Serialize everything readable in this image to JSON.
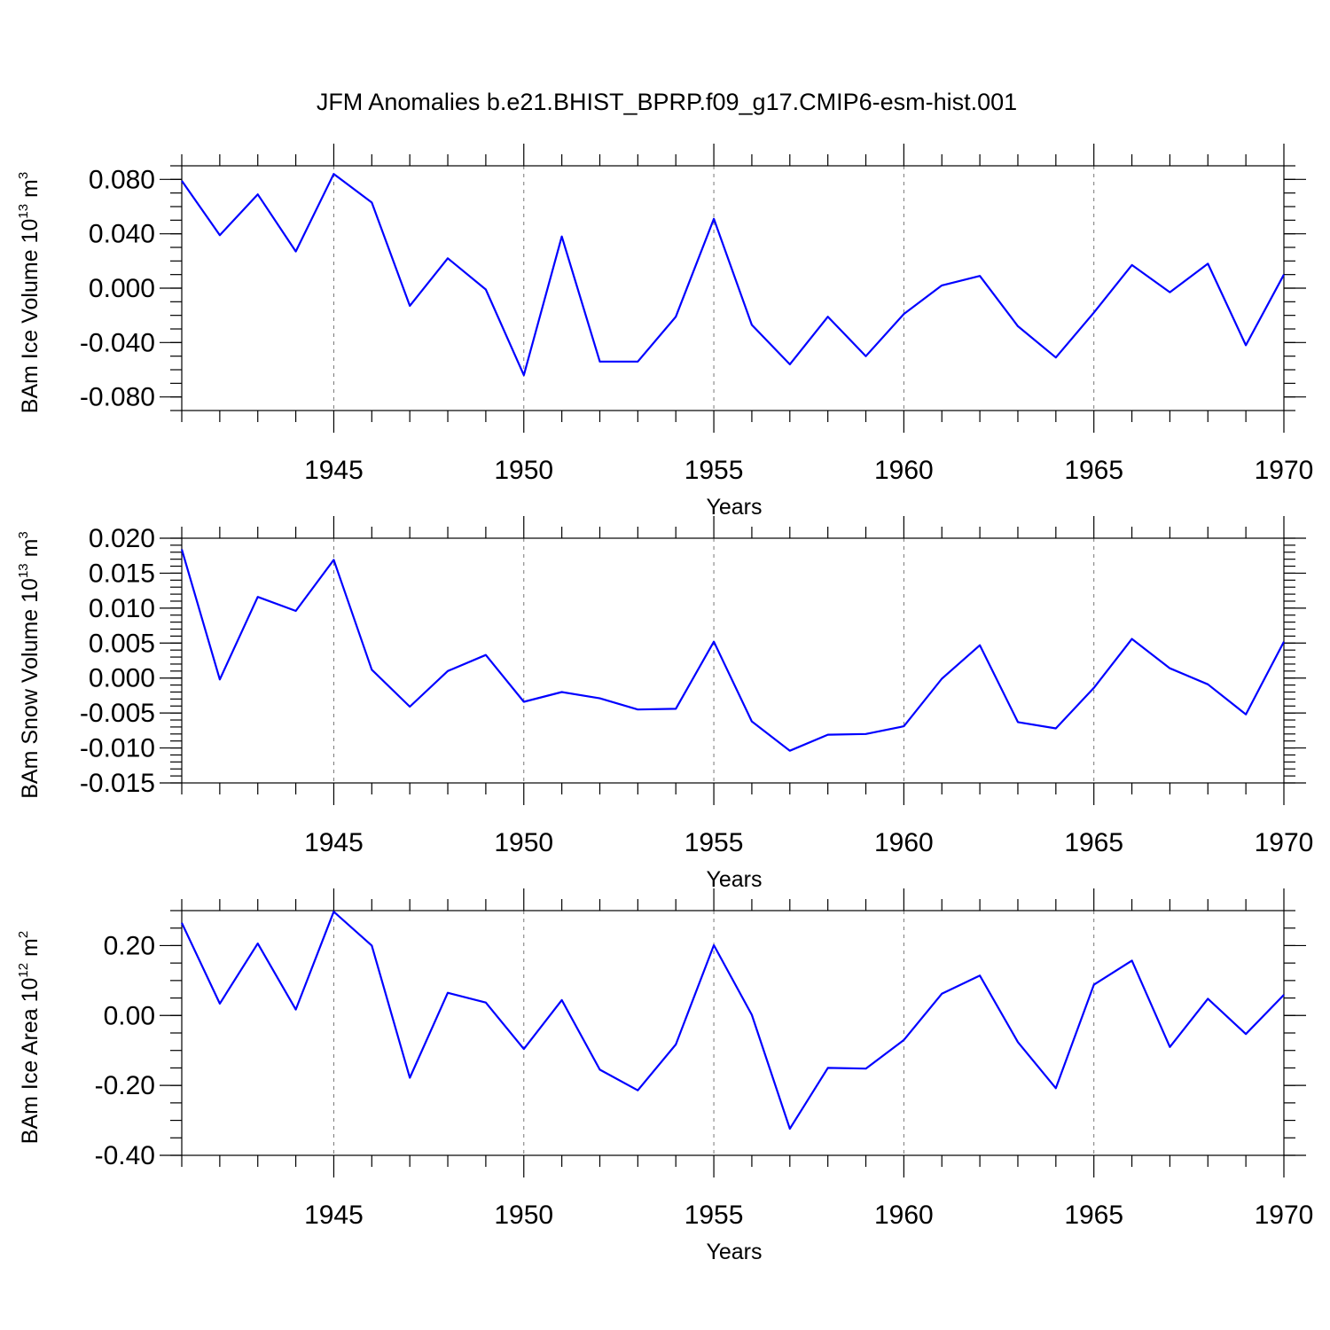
{
  "title": "JFM Anomalies b.e21.BHIST_BPRP.f09_g17.CMIP6-esm-hist.001",
  "colors": {
    "line": "#0000ff",
    "axis": "#000000",
    "grid": "#777777"
  },
  "chart_data": [
    {
      "type": "line",
      "name": "ice-volume",
      "ylabel": {
        "main": "BAm Ice Volume 10",
        "exp": "13",
        "unit": " m",
        "unit_exp": "3"
      },
      "xlabel": "Years",
      "xlim": [
        1941,
        1970
      ],
      "ylim": [
        -0.09,
        0.09
      ],
      "major_yticks": [
        -0.08,
        -0.04,
        0.0,
        0.04,
        0.08
      ],
      "ytick_labels": [
        "-0.080",
        "-0.040",
        "0.000",
        "0.040",
        "0.080"
      ],
      "minor_ystep": 0.01,
      "xticks": [
        1945,
        1950,
        1955,
        1960,
        1965,
        1970
      ],
      "xtick_labels": [
        "1945",
        "1950",
        "1955",
        "1960",
        "1965",
        "1970"
      ],
      "x": [
        1941,
        1942,
        1943,
        1944,
        1945,
        1946,
        1947,
        1948,
        1949,
        1950,
        1951,
        1952,
        1953,
        1954,
        1955,
        1956,
        1957,
        1958,
        1959,
        1960,
        1961,
        1962,
        1963,
        1964,
        1965,
        1966,
        1967,
        1968,
        1969,
        1970
      ],
      "values": [
        0.079,
        0.039,
        0.069,
        0.027,
        0.084,
        0.063,
        -0.013,
        0.022,
        -0.001,
        -0.064,
        0.038,
        -0.054,
        -0.054,
        -0.021,
        0.051,
        -0.027,
        -0.056,
        -0.021,
        -0.05,
        -0.019,
        0.002,
        0.009,
        -0.028,
        -0.051,
        -0.018,
        0.017,
        -0.003,
        0.018,
        -0.042,
        0.01
      ]
    },
    {
      "type": "line",
      "name": "snow-volume",
      "ylabel": {
        "main": "BAm Snow Volume 10",
        "exp": "13",
        "unit": " m",
        "unit_exp": "3"
      },
      "xlabel": "Years",
      "xlim": [
        1941,
        1970
      ],
      "ylim": [
        -0.015,
        0.02
      ],
      "major_yticks": [
        -0.015,
        -0.01,
        -0.005,
        0.0,
        0.005,
        0.01,
        0.015,
        0.02
      ],
      "ytick_labels": [
        "-0.015",
        "-0.010",
        "-0.005",
        "0.000",
        "0.005",
        "0.010",
        "0.015",
        "0.020"
      ],
      "minor_ystep": 0.001,
      "xticks": [
        1945,
        1950,
        1955,
        1960,
        1965,
        1970
      ],
      "xtick_labels": [
        "1945",
        "1950",
        "1955",
        "1960",
        "1965",
        "1970"
      ],
      "x": [
        1941,
        1942,
        1943,
        1944,
        1945,
        1946,
        1947,
        1948,
        1949,
        1950,
        1951,
        1952,
        1953,
        1954,
        1955,
        1956,
        1957,
        1958,
        1959,
        1960,
        1961,
        1962,
        1963,
        1964,
        1965,
        1966,
        1967,
        1968,
        1969,
        1970
      ],
      "values": [
        0.0184,
        -0.0002,
        0.0116,
        0.0096,
        0.0169,
        0.0012,
        -0.0041,
        0.001,
        0.0033,
        -0.0034,
        -0.002,
        -0.0029,
        -0.0045,
        -0.0044,
        0.0052,
        -0.0062,
        -0.0104,
        -0.0081,
        -0.008,
        -0.0069,
        -0.0001,
        0.0047,
        -0.0063,
        -0.0072,
        -0.0014,
        0.0056,
        0.0014,
        -0.0009,
        -0.0052,
        0.0052
      ]
    },
    {
      "type": "line",
      "name": "ice-area",
      "ylabel": {
        "main": "BAm Ice Area 10",
        "exp": "12",
        "unit": " m",
        "unit_exp": "2"
      },
      "xlabel": "Years",
      "xlim": [
        1941,
        1970
      ],
      "ylim": [
        -0.4,
        0.3
      ],
      "major_yticks": [
        -0.4,
        -0.2,
        0.0,
        0.2
      ],
      "ytick_labels": [
        "-0.40",
        "-0.20",
        "0.00",
        "0.20"
      ],
      "minor_ystep": 0.05,
      "xticks": [
        1945,
        1950,
        1955,
        1960,
        1965,
        1970
      ],
      "xtick_labels": [
        "1945",
        "1950",
        "1955",
        "1960",
        "1965",
        "1970"
      ],
      "x": [
        1941,
        1942,
        1943,
        1944,
        1945,
        1946,
        1947,
        1948,
        1949,
        1950,
        1951,
        1952,
        1953,
        1954,
        1955,
        1956,
        1957,
        1958,
        1959,
        1960,
        1961,
        1962,
        1963,
        1964,
        1965,
        1966,
        1967,
        1968,
        1969,
        1970
      ],
      "values": [
        0.265,
        0.034,
        0.206,
        0.017,
        0.297,
        0.2,
        -0.178,
        0.065,
        0.037,
        -0.096,
        0.044,
        -0.155,
        -0.214,
        -0.083,
        0.201,
        0.002,
        -0.324,
        -0.15,
        -0.152,
        -0.07,
        0.062,
        0.114,
        -0.076,
        -0.208,
        0.088,
        0.157,
        -0.09,
        0.048,
        -0.053,
        0.059
      ]
    }
  ]
}
